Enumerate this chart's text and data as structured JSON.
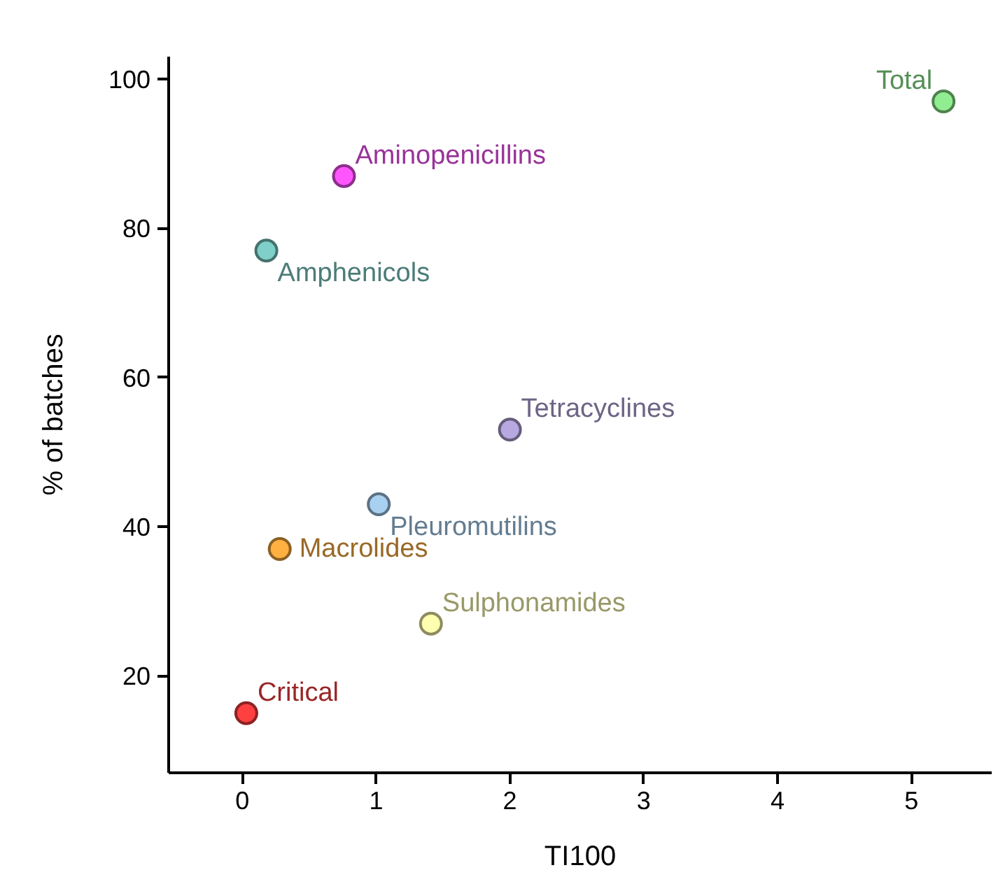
{
  "chart_data": {
    "type": "scatter",
    "xlabel": "TI100",
    "ylabel": "% of batches",
    "xlim": [
      -0.55,
      5.6
    ],
    "ylim": [
      7,
      103
    ],
    "xticks": [
      0,
      1,
      2,
      3,
      4,
      5
    ],
    "yticks": [
      20,
      40,
      60,
      80,
      100
    ],
    "grid": false,
    "marker": "circle",
    "series": [
      {
        "name": "Total",
        "color": "#90ee90",
        "x": [
          5.24
        ],
        "values": [
          97
        ]
      },
      {
        "name": "Aminopenicillins",
        "color": "#ff55ff",
        "x": [
          0.76
        ],
        "values": [
          87
        ]
      },
      {
        "name": "Amphenicols",
        "color": "#7fd0c8",
        "x": [
          0.18
        ],
        "values": [
          77
        ]
      },
      {
        "name": "Tetracyclines",
        "color": "#b8a8e0",
        "x": [
          2.0
        ],
        "values": [
          53
        ]
      },
      {
        "name": "Pleuromutilins",
        "color": "#a8d0f0",
        "x": [
          1.02
        ],
        "values": [
          43
        ]
      },
      {
        "name": "Macrolides",
        "color": "#ffb040",
        "x": [
          0.28
        ],
        "values": [
          37
        ]
      },
      {
        "name": "Sulphonamides",
        "color": "#ffffb0",
        "x": [
          1.41
        ],
        "values": [
          27
        ]
      },
      {
        "name": "Critical",
        "color": "#ff4040",
        "x": [
          0.03
        ],
        "values": [
          15
        ]
      }
    ]
  }
}
